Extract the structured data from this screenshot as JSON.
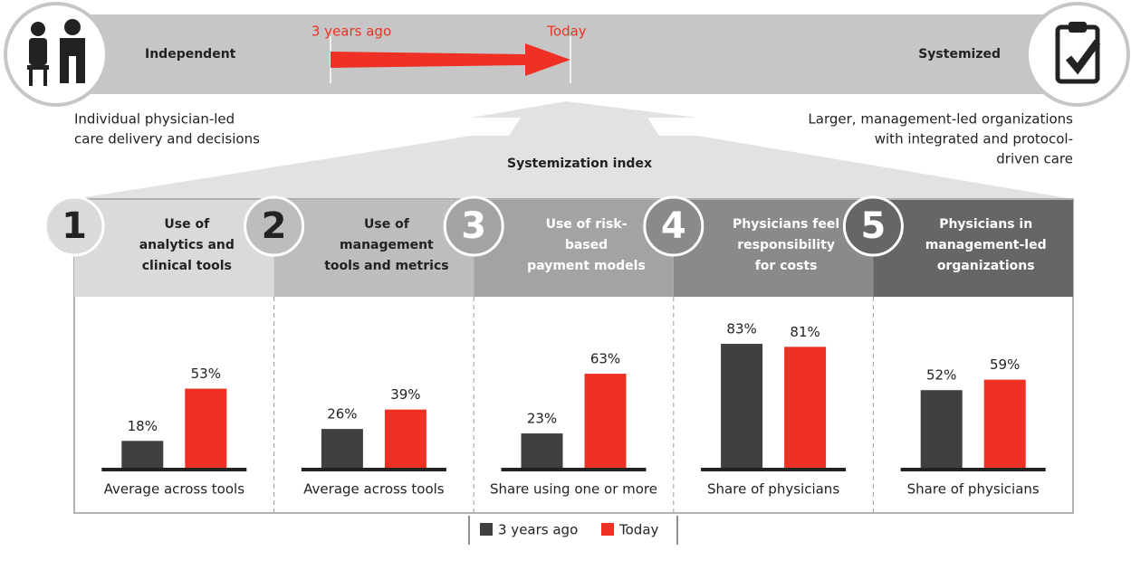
{
  "spectrum": {
    "left_label": "Independent",
    "right_label": "Systemized",
    "past_marker": "3 years ago",
    "today_marker": "Today",
    "left_description": [
      "Individual physician-led",
      "care delivery and decisions"
    ],
    "right_description": [
      "Larger, management-led organizations",
      "with integrated and protocol-",
      "driven care"
    ],
    "index_label": "Systemization index"
  },
  "legend": [
    {
      "name": "3 years ago",
      "color": "#404040"
    },
    {
      "name": "Today",
      "color": "#ee3124"
    }
  ],
  "chart_data": [
    {
      "type": "bar",
      "number": "1",
      "title": [
        "Use of",
        "analytics and",
        "clinical tools"
      ],
      "xlabel": "Average across tools",
      "categories": [
        null
      ],
      "ylim": [
        0,
        100
      ],
      "series": [
        {
          "values": [
            18
          ],
          "value_labels": [
            "18%"
          ]
        },
        {
          "values": [
            53
          ],
          "value_labels": [
            "53%"
          ]
        }
      ]
    },
    {
      "type": "bar",
      "number": "2",
      "title": [
        "Use of",
        "management",
        "tools and metrics"
      ],
      "xlabel": "Average across tools",
      "categories": [
        null
      ],
      "ylim": [
        0,
        100
      ],
      "series": [
        {
          "values": [
            26
          ],
          "value_labels": [
            "26%"
          ]
        },
        {
          "values": [
            39
          ],
          "value_labels": [
            "39%"
          ]
        }
      ]
    },
    {
      "type": "bar",
      "number": "3",
      "title": [
        "Use of risk-",
        "based",
        "payment models"
      ],
      "xlabel": "Share using one or more",
      "categories": [
        null
      ],
      "ylim": [
        0,
        100
      ],
      "series": [
        {
          "values": [
            23
          ],
          "value_labels": [
            "23%"
          ]
        },
        {
          "values": [
            63
          ],
          "value_labels": [
            "63%"
          ]
        }
      ]
    },
    {
      "type": "bar",
      "number": "4",
      "title": [
        "Physicians feel",
        "responsibility",
        "for costs"
      ],
      "xlabel": "Share of physicians",
      "categories": [
        null
      ],
      "ylim": [
        0,
        100
      ],
      "series": [
        {
          "values": [
            83
          ],
          "value_labels": [
            "83%"
          ]
        },
        {
          "values": [
            81
          ],
          "value_labels": [
            "81%"
          ]
        }
      ]
    },
    {
      "type": "bar",
      "number": "5",
      "title": [
        "Physicians in",
        "management-led",
        "organizations"
      ],
      "xlabel": "Share of physicians",
      "categories": [
        null
      ],
      "ylim": [
        0,
        100
      ],
      "series": [
        {
          "values": [
            52
          ],
          "value_labels": [
            "52%"
          ]
        },
        {
          "values": [
            59
          ],
          "value_labels": [
            "59%"
          ]
        }
      ]
    }
  ]
}
